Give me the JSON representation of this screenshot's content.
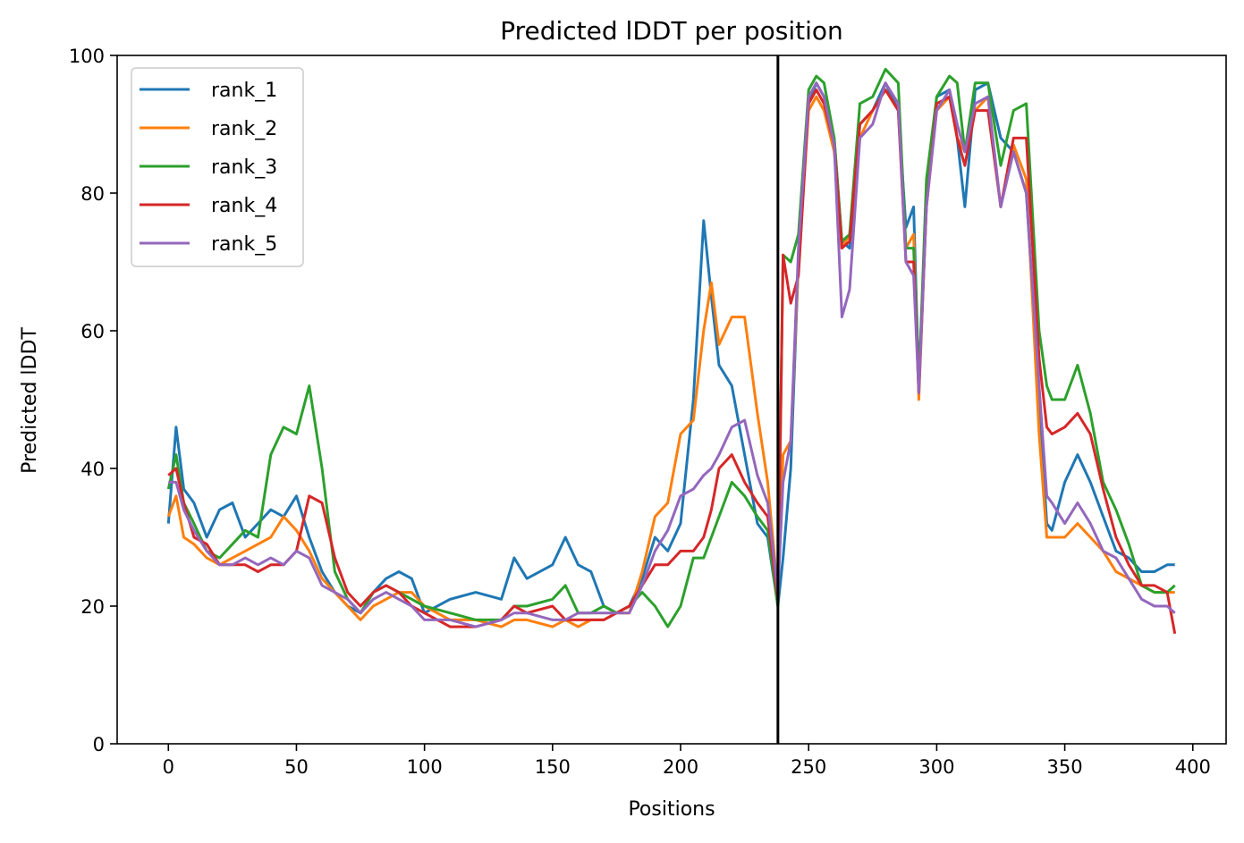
{
  "chart_data": {
    "type": "line",
    "title": "Predicted lDDT per position",
    "xlabel": "Positions",
    "ylabel": "Predicted lDDT",
    "xlim": [
      -20,
      413
    ],
    "ylim": [
      0,
      100
    ],
    "xticks": [
      0,
      50,
      100,
      150,
      200,
      250,
      300,
      350,
      400
    ],
    "yticks": [
      0,
      20,
      40,
      60,
      80,
      100
    ],
    "grid": false,
    "legend_position": "top-left",
    "divider_x": 238,
    "divider_color": "#000000",
    "x": [
      0,
      3,
      6,
      10,
      15,
      20,
      25,
      30,
      35,
      40,
      45,
      50,
      55,
      60,
      65,
      70,
      75,
      80,
      85,
      90,
      95,
      100,
      110,
      120,
      130,
      135,
      140,
      150,
      155,
      160,
      165,
      170,
      175,
      180,
      185,
      190,
      195,
      200,
      205,
      209,
      212,
      215,
      220,
      225,
      230,
      234,
      238,
      240,
      243,
      246,
      250,
      253,
      256,
      260,
      263,
      266,
      270,
      275,
      280,
      285,
      288,
      291,
      293,
      296,
      300,
      305,
      308,
      311,
      315,
      320,
      325,
      330,
      335,
      340,
      343,
      345,
      350,
      355,
      360,
      365,
      370,
      375,
      380,
      385,
      390,
      393
    ],
    "series": [
      {
        "name": "rank_1",
        "color": "#1f77b4",
        "values": [
          32,
          46,
          37,
          35,
          30,
          34,
          35,
          30,
          32,
          34,
          33,
          36,
          30,
          25,
          22,
          20,
          19,
          22,
          24,
          25,
          24,
          19,
          21,
          22,
          21,
          27,
          24,
          26,
          30,
          26,
          25,
          20,
          19,
          20,
          24,
          30,
          28,
          32,
          50,
          76,
          65,
          55,
          52,
          42,
          32,
          30,
          20,
          27,
          40,
          70,
          93,
          96,
          94,
          88,
          73,
          72,
          90,
          92,
          96,
          92,
          75,
          78,
          52,
          80,
          94,
          95,
          88,
          78,
          95,
          96,
          88,
          86,
          80,
          50,
          32,
          31,
          38,
          42,
          38,
          33,
          28,
          27,
          25,
          25,
          26,
          26
        ]
      },
      {
        "name": "rank_2",
        "color": "#ff7f0e",
        "values": [
          33,
          36,
          30,
          29,
          27,
          26,
          27,
          28,
          29,
          30,
          33,
          31,
          28,
          24,
          22,
          20,
          18,
          20,
          21,
          22,
          22,
          20,
          18,
          18,
          17,
          18,
          18,
          17,
          18,
          17,
          18,
          18,
          19,
          19,
          25,
          33,
          35,
          45,
          47,
          60,
          67,
          58,
          62,
          62,
          48,
          38,
          22,
          42,
          44,
          70,
          92,
          94,
          92,
          86,
          72,
          74,
          88,
          92,
          95,
          92,
          72,
          74,
          50,
          78,
          92,
          94,
          88,
          86,
          92,
          94,
          78,
          87,
          82,
          45,
          30,
          30,
          30,
          32,
          30,
          28,
          25,
          24,
          23,
          22,
          22,
          22
        ]
      },
      {
        "name": "rank_3",
        "color": "#2ca02c",
        "values": [
          37,
          42,
          35,
          32,
          28,
          27,
          29,
          31,
          30,
          42,
          46,
          45,
          52,
          40,
          25,
          21,
          19,
          22,
          23,
          22,
          21,
          20,
          19,
          18,
          18,
          20,
          20,
          21,
          23,
          19,
          19,
          20,
          19,
          20,
          22,
          20,
          17,
          20,
          27,
          27,
          30,
          33,
          38,
          36,
          33,
          31,
          20,
          71,
          70,
          74,
          95,
          97,
          96,
          88,
          73,
          74,
          93,
          94,
          98,
          96,
          72,
          72,
          52,
          82,
          94,
          97,
          96,
          86,
          96,
          96,
          84,
          92,
          93,
          60,
          52,
          50,
          50,
          55,
          48,
          38,
          34,
          29,
          23,
          22,
          22,
          23
        ]
      },
      {
        "name": "rank_4",
        "color": "#d62728",
        "values": [
          39,
          40,
          35,
          30,
          29,
          26,
          26,
          26,
          25,
          26,
          26,
          28,
          36,
          35,
          27,
          22,
          20,
          22,
          23,
          22,
          20,
          19,
          17,
          17,
          18,
          20,
          19,
          20,
          18,
          18,
          18,
          18,
          19,
          20,
          23,
          26,
          26,
          28,
          28,
          30,
          34,
          40,
          42,
          38,
          35,
          33,
          21,
          71,
          64,
          68,
          93,
          95,
          93,
          87,
          72,
          73,
          90,
          92,
          95,
          92,
          70,
          70,
          51,
          78,
          93,
          94,
          88,
          84,
          92,
          92,
          78,
          88,
          88,
          56,
          46,
          45,
          46,
          48,
          45,
          37,
          30,
          26,
          23,
          23,
          22,
          16
        ]
      },
      {
        "name": "rank_5",
        "color": "#9467bd",
        "values": [
          38,
          38,
          34,
          31,
          28,
          26,
          26,
          27,
          26,
          27,
          26,
          28,
          27,
          23,
          22,
          21,
          19,
          21,
          22,
          21,
          20,
          18,
          18,
          17,
          18,
          19,
          19,
          18,
          18,
          19,
          19,
          19,
          19,
          19,
          23,
          28,
          31,
          36,
          37,
          39,
          40,
          42,
          46,
          47,
          39,
          35,
          22,
          38,
          44,
          72,
          94,
          96,
          94,
          87,
          62,
          66,
          88,
          90,
          96,
          93,
          70,
          68,
          51,
          78,
          92,
          95,
          90,
          86,
          93,
          94,
          78,
          86,
          80,
          52,
          36,
          35,
          32,
          35,
          32,
          28,
          27,
          24,
          21,
          20,
          20,
          19
        ]
      }
    ]
  }
}
